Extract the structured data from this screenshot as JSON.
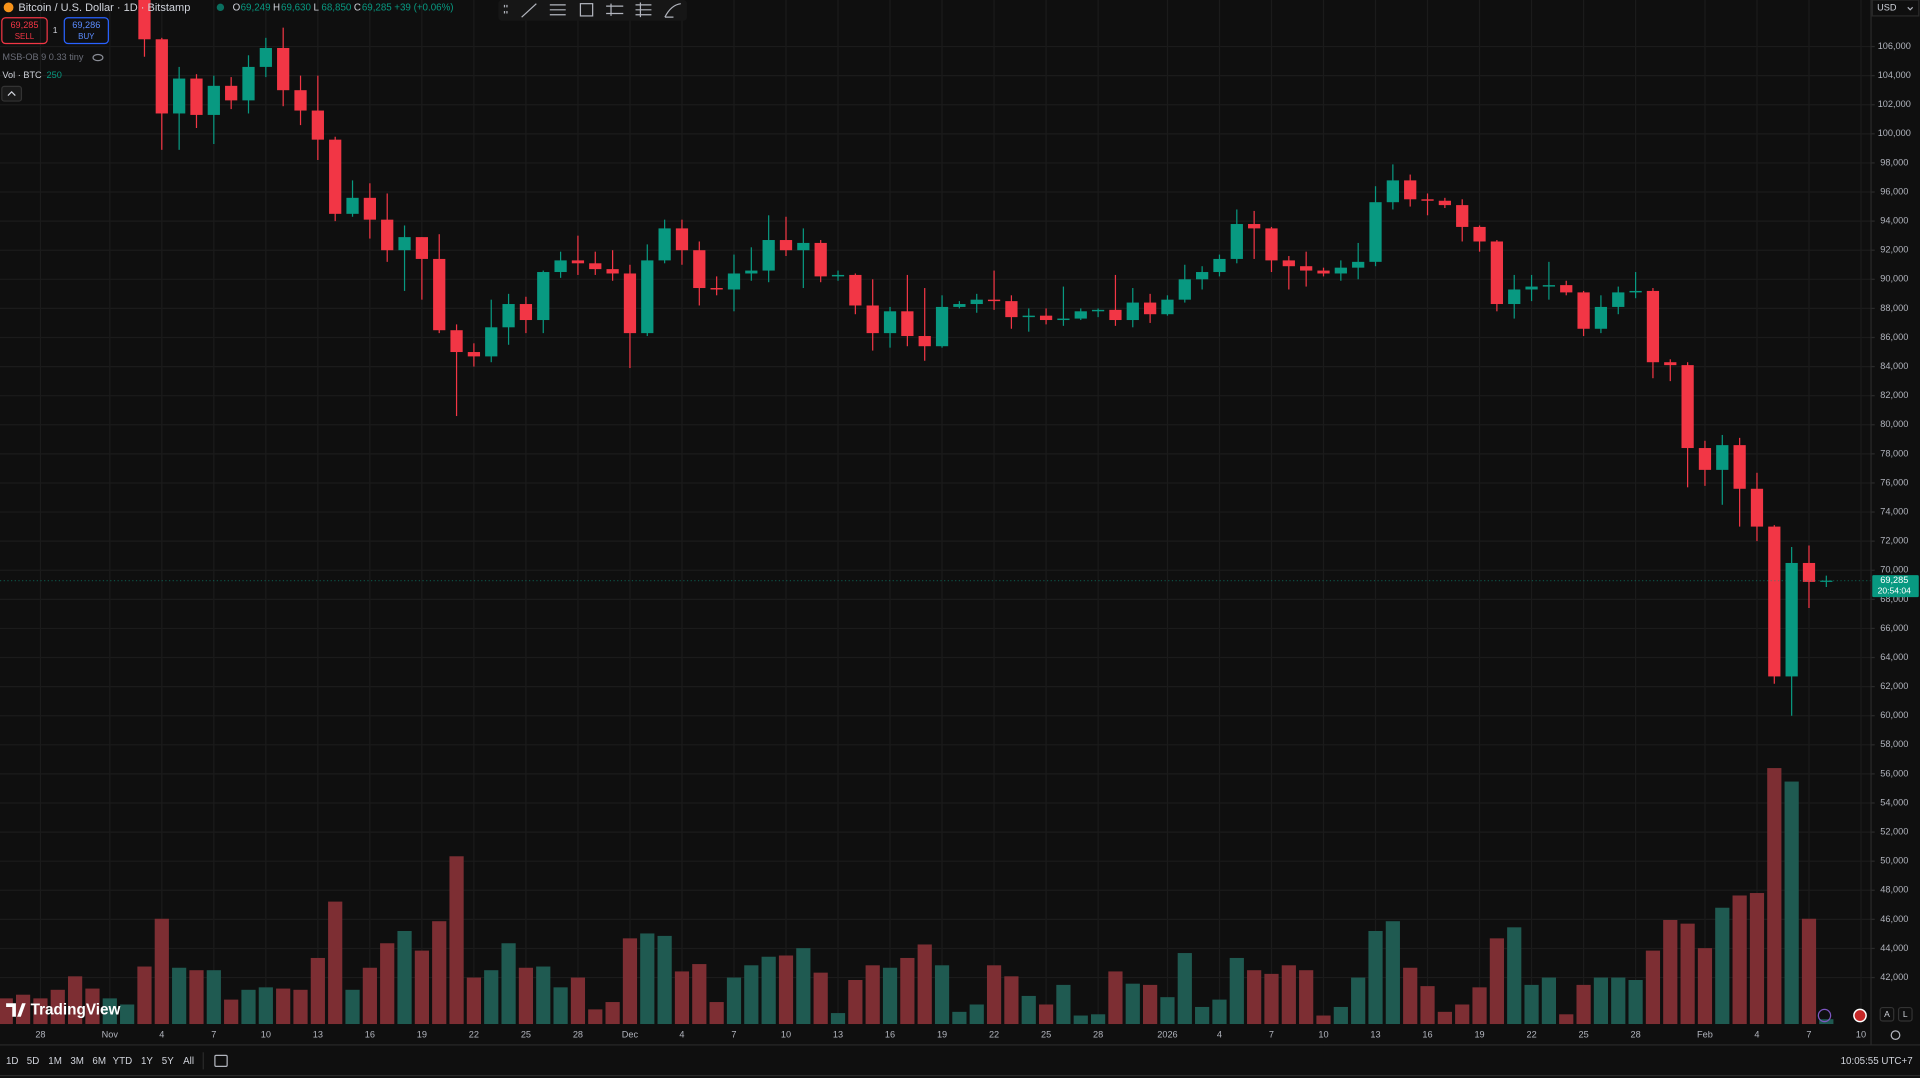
{
  "ui": {
    "title": "Bitcoin / U.S. Dollar · 1D · Bitstamp",
    "ohlc": [
      {
        "label": "O",
        "value": "69,249"
      },
      {
        "label": "H",
        "value": "69,630"
      },
      {
        "label": "L",
        "value": "68,850"
      },
      {
        "label": "C",
        "value": "69,285"
      }
    ],
    "change": "+39 (+0.06%)",
    "sell_price": "69,285",
    "sell": "SELL",
    "quantity": "1",
    "buy_price": "69,286",
    "buy": "BUY",
    "indicator": "MSB-OB 9 0.33 tiny",
    "volume_label": "Vol · BTC",
    "volume_length": "250",
    "currency": "USD",
    "logo": "TradingView",
    "ranges": [
      "1D",
      "5D",
      "1M",
      "3M",
      "6M",
      "YTD",
      "1Y",
      "5Y",
      "All"
    ],
    "clock": "10:05:55 UTC+7",
    "scale_buttons": [
      "A",
      "L"
    ]
  },
  "chart_data": {
    "type": "candlestick",
    "up_color": "#089981",
    "down_color": "#f23645",
    "grid": true,
    "x": [
      "Oct 26",
      "Oct 27",
      "Oct 28",
      "Oct 29",
      "Oct 30",
      "Oct 31",
      "Nov 1",
      "Nov 2",
      "Nov 3",
      "Nov 4",
      "Nov 5",
      "Nov 6",
      "Nov 7",
      "Nov 8",
      "Nov 9",
      "Nov 10",
      "Nov 11",
      "Nov 12",
      "Nov 13",
      "Nov 14",
      "Nov 15",
      "Nov 16",
      "Nov 17",
      "Nov 18",
      "Nov 19",
      "Nov 20",
      "Nov 21",
      "Nov 22",
      "Nov 23",
      "Nov 24",
      "Nov 25",
      "Nov 26",
      "Nov 27",
      "Nov 28",
      "Nov 29",
      "Nov 30",
      "Dec 1",
      "Dec 2",
      "Dec 3",
      "Dec 4",
      "Dec 5",
      "Dec 6",
      "Dec 7",
      "Dec 8",
      "Dec 9",
      "Dec 10",
      "Dec 11",
      "Dec 12",
      "Dec 13",
      "Dec 14",
      "Dec 15",
      "Dec 16",
      "Dec 17",
      "Dec 18",
      "Dec 19",
      "Dec 20",
      "Dec 21",
      "Dec 22",
      "Dec 23",
      "Dec 24",
      "Dec 25",
      "Dec 26",
      "Dec 27",
      "Dec 28",
      "Dec 29",
      "Dec 30",
      "Dec 31",
      "Jan 1",
      "Jan 2",
      "Jan 3",
      "Jan 4",
      "Jan 5",
      "Jan 6",
      "Jan 7",
      "Jan 8",
      "Jan 9",
      "Jan 10",
      "Jan 11",
      "Jan 12",
      "Jan 13",
      "Jan 14",
      "Jan 15",
      "Jan 16",
      "Jan 17",
      "Jan 18",
      "Jan 19",
      "Jan 20",
      "Jan 21",
      "Jan 22",
      "Jan 23",
      "Jan 24",
      "Jan 25",
      "Jan 26",
      "Jan 27",
      "Jan 28",
      "Jan 29",
      "Jan 30",
      "Jan 31",
      "Feb 1",
      "Feb 2",
      "Feb 3",
      "Feb 4",
      "Feb 5",
      "Feb 6",
      "Feb 7",
      "Feb 8"
    ],
    "open": [
      null,
      null,
      null,
      null,
      null,
      null,
      null,
      null,
      110500,
      106500,
      101400,
      103800,
      101300,
      103300,
      102300,
      104600,
      105900,
      103000,
      101600,
      99600,
      94500,
      95600,
      94100,
      92000,
      92900,
      91400,
      86500,
      85000,
      84700,
      86700,
      88300,
      87200,
      90500,
      91300,
      91100,
      90700,
      90400,
      86300,
      91300,
      93500,
      92000,
      89400,
      89300,
      90400,
      90600,
      92700,
      92000,
      92500,
      90200,
      90300,
      88200,
      86300,
      87800,
      86100,
      85400,
      88100,
      88300,
      88600,
      88500,
      87400,
      87500,
      87200,
      87300,
      87800,
      87900,
      87200,
      88400,
      87600,
      88600,
      90000,
      90500,
      91400,
      93800,
      93500,
      91300,
      90900,
      90600,
      90400,
      90800,
      91200,
      95300,
      96800,
      95500,
      95400,
      95100,
      93600,
      92600,
      88300,
      89300,
      89500,
      89600,
      89100,
      86600,
      88100,
      89100,
      89200,
      84300,
      84100,
      78400,
      76900,
      78600,
      75600,
      73000,
      62700,
      70500,
      69249
    ],
    "high": [
      null,
      null,
      null,
      null,
      null,
      null,
      null,
      null,
      110700,
      106600,
      104600,
      104100,
      104000,
      103900,
      105400,
      106600,
      107300,
      104000,
      104000,
      99800,
      96800,
      96600,
      95900,
      93700,
      92900,
      93100,
      86900,
      85600,
      88600,
      89000,
      88800,
      90600,
      91900,
      93000,
      91900,
      92000,
      91000,
      92400,
      94100,
      94100,
      92600,
      90200,
      91700,
      92200,
      94400,
      94300,
      93500,
      92700,
      90600,
      90400,
      90000,
      88100,
      90300,
      89400,
      88900,
      88500,
      89000,
      90600,
      88900,
      88000,
      88000,
      89500,
      88000,
      88000,
      90300,
      89400,
      89000,
      88900,
      91000,
      90900,
      91700,
      94800,
      94700,
      93600,
      91600,
      91900,
      90800,
      91300,
      92500,
      96400,
      97900,
      97200,
      95900,
      95600,
      95500,
      93700,
      92700,
      90300,
      90300,
      91200,
      89900,
      89200,
      88900,
      89500,
      90500,
      89400,
      84500,
      84300,
      78900,
      79300,
      79100,
      76700,
      73100,
      71600,
      71700,
      69630
    ],
    "low": [
      null,
      null,
      null,
      null,
      null,
      null,
      null,
      null,
      105300,
      98900,
      98900,
      100400,
      99300,
      101700,
      101400,
      103900,
      101900,
      100600,
      98200,
      94000,
      94300,
      92800,
      91200,
      89200,
      88600,
      86300,
      80600,
      84000,
      84300,
      85500,
      86300,
      86300,
      90100,
      90300,
      90300,
      89900,
      83900,
      86100,
      91100,
      91000,
      88200,
      88900,
      87800,
      89900,
      89800,
      91600,
      89400,
      89800,
      89900,
      87600,
      85100,
      85300,
      85400,
      84400,
      85300,
      88000,
      87700,
      87900,
      86600,
      86400,
      86900,
      86800,
      87200,
      87400,
      86800,
      86700,
      87000,
      87500,
      88400,
      89300,
      90200,
      91100,
      91400,
      90500,
      89300,
      89500,
      90200,
      89900,
      90000,
      90900,
      94800,
      95000,
      94400,
      94900,
      92600,
      91900,
      87800,
      87300,
      88500,
      88600,
      88900,
      86100,
      86300,
      87600,
      88700,
      83200,
      83000,
      75700,
      75800,
      74500,
      73000,
      72000,
      62200,
      60000,
      67400,
      68850
    ],
    "close": [
      null,
      null,
      null,
      null,
      null,
      null,
      null,
      null,
      106500,
      101400,
      103800,
      101300,
      103300,
      102300,
      104600,
      105900,
      103000,
      101600,
      99600,
      94500,
      95600,
      94100,
      92000,
      92900,
      91400,
      86500,
      85000,
      84700,
      86700,
      88300,
      87200,
      90500,
      91300,
      91100,
      90700,
      90400,
      86300,
      91300,
      93500,
      92000,
      89400,
      89300,
      90400,
      90600,
      92700,
      92000,
      92500,
      90200,
      90300,
      88200,
      86300,
      87800,
      86100,
      85400,
      88100,
      88300,
      88600,
      88500,
      87400,
      87500,
      87200,
      87300,
      87800,
      87900,
      87200,
      88400,
      87600,
      88600,
      90000,
      90500,
      91400,
      93800,
      93500,
      91300,
      90900,
      90600,
      90400,
      90800,
      91200,
      95300,
      96800,
      95500,
      95400,
      95100,
      93600,
      92600,
      88300,
      89300,
      89500,
      89600,
      89100,
      86600,
      88100,
      89100,
      89200,
      84300,
      84100,
      78400,
      76900,
      78600,
      75600,
      73000,
      62700,
      70500,
      69200,
      69285
    ],
    "volume": [
      21,
      24,
      21,
      28,
      39,
      29,
      21,
      16,
      47,
      86,
      46,
      44,
      44,
      20,
      28,
      30,
      29,
      28,
      54,
      100,
      28,
      46,
      66,
      76,
      60,
      84,
      137,
      38,
      44,
      66,
      46,
      47,
      30,
      38,
      12,
      18,
      70,
      74,
      72,
      43,
      49,
      18,
      38,
      48,
      55,
      56,
      62,
      42,
      9,
      36,
      48,
      46,
      54,
      65,
      48,
      10,
      16,
      48,
      39,
      23,
      16,
      32,
      7,
      8,
      43,
      33,
      32,
      22,
      58,
      14,
      20,
      54,
      44,
      41,
      48,
      44,
      7,
      14,
      38,
      76,
      84,
      46,
      31,
      10,
      16,
      30,
      70,
      79,
      32,
      38,
      8,
      32,
      38,
      38,
      36,
      60,
      85,
      82,
      62,
      95,
      105,
      107,
      209,
      198,
      86,
      4
    ],
    "volume_colors": [
      "#7d2e33",
      "#7d2e33",
      "#7d2e33",
      "#7d2e33",
      "#7d2e33",
      "#7d2e33",
      "#1f5a51",
      "#1f5a51",
      "#7d2e33",
      "#7d2e33",
      "#1f5a51",
      "#7d2e33",
      "#1f5a51",
      "#7d2e33",
      "#1f5a51",
      "#1f5a51",
      "#7d2e33",
      "#7d2e33",
      "#7d2e33",
      "#7d2e33",
      "#1f5a51",
      "#7d2e33",
      "#7d2e33",
      "#1f5a51",
      "#7d2e33",
      "#7d2e33",
      "#7d2e33",
      "#7d2e33",
      "#1f5a51",
      "#1f5a51",
      "#7d2e33",
      "#1f5a51",
      "#1f5a51",
      "#7d2e33",
      "#7d2e33",
      "#7d2e33",
      "#7d2e33",
      "#1f5a51",
      "#1f5a51",
      "#7d2e33",
      "#7d2e33",
      "#7d2e33",
      "#1f5a51",
      "#1f5a51",
      "#1f5a51",
      "#7d2e33",
      "#1f5a51",
      "#7d2e33",
      "#1f5a51",
      "#7d2e33",
      "#7d2e33",
      "#1f5a51",
      "#7d2e33",
      "#7d2e33",
      "#1f5a51",
      "#1f5a51",
      "#1f5a51",
      "#7d2e33",
      "#7d2e33",
      "#1f5a51",
      "#7d2e33",
      "#1f5a51",
      "#1f5a51",
      "#1f5a51",
      "#7d2e33",
      "#1f5a51",
      "#7d2e33",
      "#1f5a51",
      "#1f5a51",
      "#1f5a51",
      "#1f5a51",
      "#1f5a51",
      "#7d2e33",
      "#7d2e33",
      "#7d2e33",
      "#7d2e33",
      "#7d2e33",
      "#1f5a51",
      "#1f5a51",
      "#1f5a51",
      "#1f5a51",
      "#7d2e33",
      "#7d2e33",
      "#7d2e33",
      "#7d2e33",
      "#7d2e33",
      "#7d2e33",
      "#1f5a51",
      "#1f5a51",
      "#1f5a51",
      "#7d2e33",
      "#7d2e33",
      "#1f5a51",
      "#1f5a51",
      "#1f5a51",
      "#7d2e33",
      "#7d2e33",
      "#7d2e33",
      "#7d2e33",
      "#1f5a51",
      "#7d2e33",
      "#7d2e33",
      "#7d2e33",
      "#1f5a51",
      "#7d2e33",
      "#1f5a51"
    ],
    "volume_ylim": [
      0,
      230
    ],
    "ylim": [
      38800,
      109200
    ],
    "yticks": [
      {
        "value": 106000,
        "label": "106,000"
      },
      {
        "value": 104000,
        "label": "104,000"
      },
      {
        "value": 102000,
        "label": "102,000"
      },
      {
        "value": 100000,
        "label": "100,000"
      },
      {
        "value": 98000,
        "label": "98,000"
      },
      {
        "value": 96000,
        "label": "96,000"
      },
      {
        "value": 94000,
        "label": "94,000"
      },
      {
        "value": 92000,
        "label": "92,000"
      },
      {
        "value": 90000,
        "label": "90,000"
      },
      {
        "value": 88000,
        "label": "88,000"
      },
      {
        "value": 86000,
        "label": "86,000"
      },
      {
        "value": 84000,
        "label": "84,000"
      },
      {
        "value": 82000,
        "label": "82,000"
      },
      {
        "value": 80000,
        "label": "80,000"
      },
      {
        "value": 78000,
        "label": "78,000"
      },
      {
        "value": 76000,
        "label": "76,000"
      },
      {
        "value": 74000,
        "label": "74,000"
      },
      {
        "value": 72000,
        "label": "72,000"
      },
      {
        "value": 70000,
        "label": "70,000"
      },
      {
        "value": 68000,
        "label": "68,000"
      },
      {
        "value": 66000,
        "label": "66,000"
      },
      {
        "value": 64000,
        "label": "64,000"
      },
      {
        "value": 62000,
        "label": "62,000"
      },
      {
        "value": 60000,
        "label": "60,000"
      },
      {
        "value": 58000,
        "label": "58,000"
      },
      {
        "value": 56000,
        "label": "56,000"
      },
      {
        "value": 54000,
        "label": "54,000"
      },
      {
        "value": 52000,
        "label": "52,000"
      },
      {
        "value": 50000,
        "label": "50,000"
      },
      {
        "value": 48000,
        "label": "48,000"
      },
      {
        "value": 46000,
        "label": "46,000"
      },
      {
        "value": 44000,
        "label": "44,000"
      },
      {
        "value": 42000,
        "label": "42,000"
      }
    ],
    "xticks": [
      {
        "value": "Oct 28",
        "label": "28"
      },
      {
        "value": "Nov 1",
        "label": "Nov"
      },
      {
        "value": "Nov 4",
        "label": "4"
      },
      {
        "value": "Nov 7",
        "label": "7"
      },
      {
        "value": "Nov 10",
        "label": "10"
      },
      {
        "value": "Nov 13",
        "label": "13"
      },
      {
        "value": "Nov 16",
        "label": "16"
      },
      {
        "value": "Nov 19",
        "label": "19"
      },
      {
        "value": "Nov 22",
        "label": "22"
      },
      {
        "value": "Nov 25",
        "label": "25"
      },
      {
        "value": "Nov 28",
        "label": "28"
      },
      {
        "value": "Dec 1",
        "label": "Dec"
      },
      {
        "value": "Dec 4",
        "label": "4"
      },
      {
        "value": "Dec 7",
        "label": "7"
      },
      {
        "value": "Dec 10",
        "label": "10"
      },
      {
        "value": "Dec 13",
        "label": "13"
      },
      {
        "value": "Dec 16",
        "label": "16"
      },
      {
        "value": "Dec 19",
        "label": "19"
      },
      {
        "value": "Dec 22",
        "label": "22"
      },
      {
        "value": "Dec 25",
        "label": "25"
      },
      {
        "value": "Dec 28",
        "label": "28"
      },
      {
        "value": "Jan 1",
        "label": "2026"
      },
      {
        "value": "Jan 4",
        "label": "4"
      },
      {
        "value": "Jan 7",
        "label": "7"
      },
      {
        "value": "Jan 10",
        "label": "10"
      },
      {
        "value": "Jan 13",
        "label": "13"
      },
      {
        "value": "Jan 16",
        "label": "16"
      },
      {
        "value": "Jan 19",
        "label": "19"
      },
      {
        "value": "Jan 22",
        "label": "22"
      },
      {
        "value": "Jan 25",
        "label": "25"
      },
      {
        "value": "Jan 28",
        "label": "28"
      },
      {
        "value": "Feb 1",
        "label": "Feb"
      },
      {
        "value": "Feb 4",
        "label": "4"
      },
      {
        "value": "Feb 7",
        "label": "7"
      },
      {
        "value": "Feb 10",
        "label": "10"
      }
    ],
    "last_price": {
      "value": 69285,
      "label": "69,285"
    },
    "countdown": "20:54:04"
  }
}
